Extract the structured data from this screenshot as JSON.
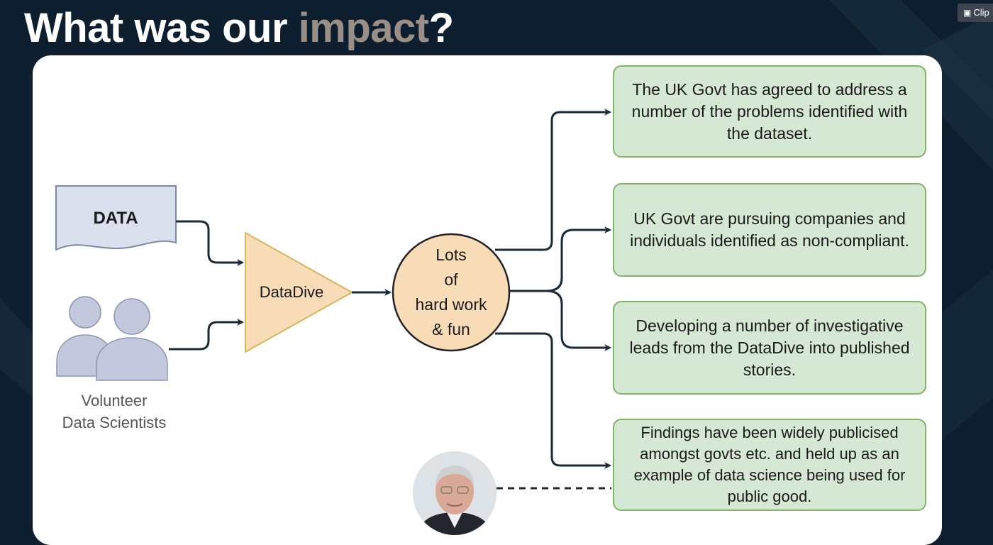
{
  "slide": {
    "title_main": "What was our ",
    "title_accent": "impact",
    "title_end": "?",
    "accent_color": "#9a8f87",
    "background_color": "#0d1f2e"
  },
  "toolbar": {
    "clip_label": "Clip"
  },
  "diagram": {
    "data_label": "DATA",
    "volunteer_label": "Volunteer\nData Scientists",
    "datadive_label": "DataDive",
    "work_label": "Lots\nof\nhard work\n& fun",
    "outcomes": [
      "The UK Govt has agreed to address a number of the problems identified with the dataset.",
      "UK Govt are pursuing companies and individuals  identified as non-compliant.",
      "Developing a number of investigative leads from the DataDive into published stories.",
      "Findings have been widely publicised amongst govts etc. and held up as an example of data science being used for public good."
    ],
    "colors": {
      "data_fill": "#dae0ee",
      "people_fill": "#c3c8dc",
      "datadive_fill": "#f8dcb8",
      "outcome_fill": "#d5e8d4",
      "outcome_border": "#82b366",
      "arrow": "#1a2a36"
    }
  },
  "presenter": {
    "icon": "presenter-avatar"
  }
}
